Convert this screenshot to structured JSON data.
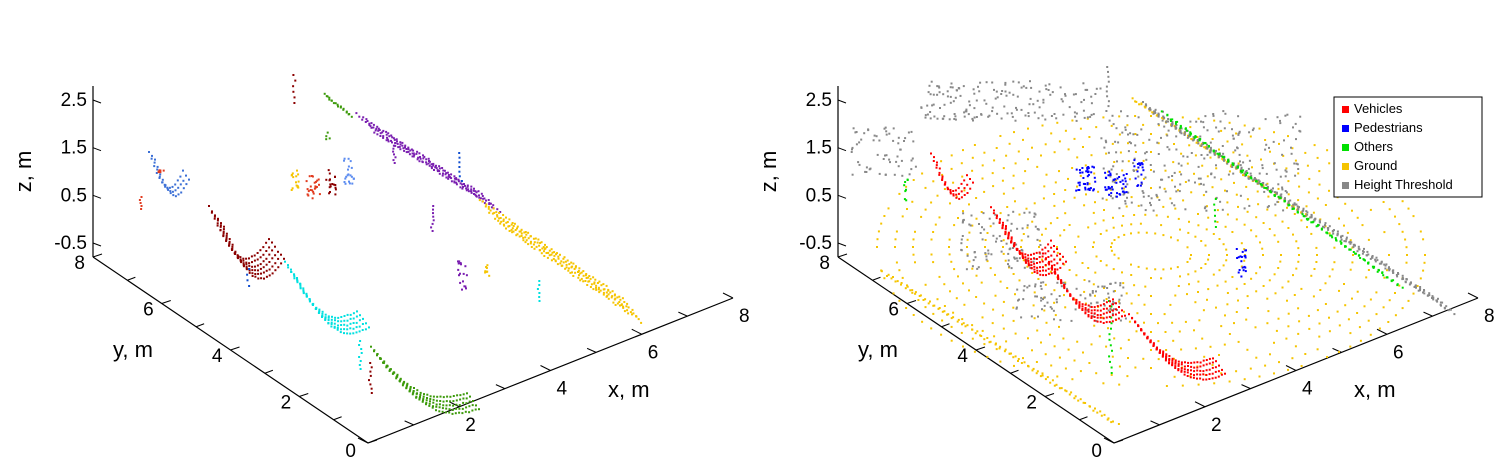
{
  "chart_data": [
    {
      "type": "scatter",
      "title": "",
      "xlabel": "x,  m",
      "ylabel": "y,  m",
      "zlabel": "z,  m",
      "x_ticks": [
        "2",
        "4",
        "6",
        "8"
      ],
      "y_ticks": [
        "0",
        "2",
        "4",
        "6",
        "8"
      ],
      "z_ticks": [
        "2.5",
        "1.5",
        "0.5",
        "-0.5"
      ],
      "xlim": [
        0,
        8
      ],
      "ylim": [
        0,
        8
      ],
      "zlim": [
        -0.5,
        2.5
      ],
      "view": "3d",
      "legend": null,
      "coloring": "per-cluster",
      "cluster_colors": [
        "#3b6fd6",
        "#e23b1f",
        "#8b0000",
        "#f5c400",
        "#5c8cf0",
        "#7a1fb0",
        "#00e0e0",
        "#3c9a0a",
        "#0e4ccf"
      ]
    },
    {
      "type": "scatter",
      "title": "",
      "xlabel": "x,  m",
      "ylabel": "y,  m",
      "zlabel": "z,  m",
      "x_ticks": [
        "2",
        "4",
        "6",
        "8"
      ],
      "y_ticks": [
        "0",
        "2",
        "4",
        "6",
        "8"
      ],
      "z_ticks": [
        "2.5",
        "1.5",
        "0.5",
        "-0.5"
      ],
      "xlim": [
        0,
        8
      ],
      "ylim": [
        0,
        8
      ],
      "zlim": [
        -0.5,
        2.5
      ],
      "view": "3d",
      "legend_position": "top-right",
      "series": [
        {
          "name": "Vehicles",
          "color": "#ff0000"
        },
        {
          "name": "Pedestrians",
          "color": "#0000ff"
        },
        {
          "name": "Others",
          "color": "#00e000"
        },
        {
          "name": "Ground",
          "color": "#f5c400"
        },
        {
          "name": "Height Threshold",
          "color": "#888888"
        }
      ]
    }
  ]
}
